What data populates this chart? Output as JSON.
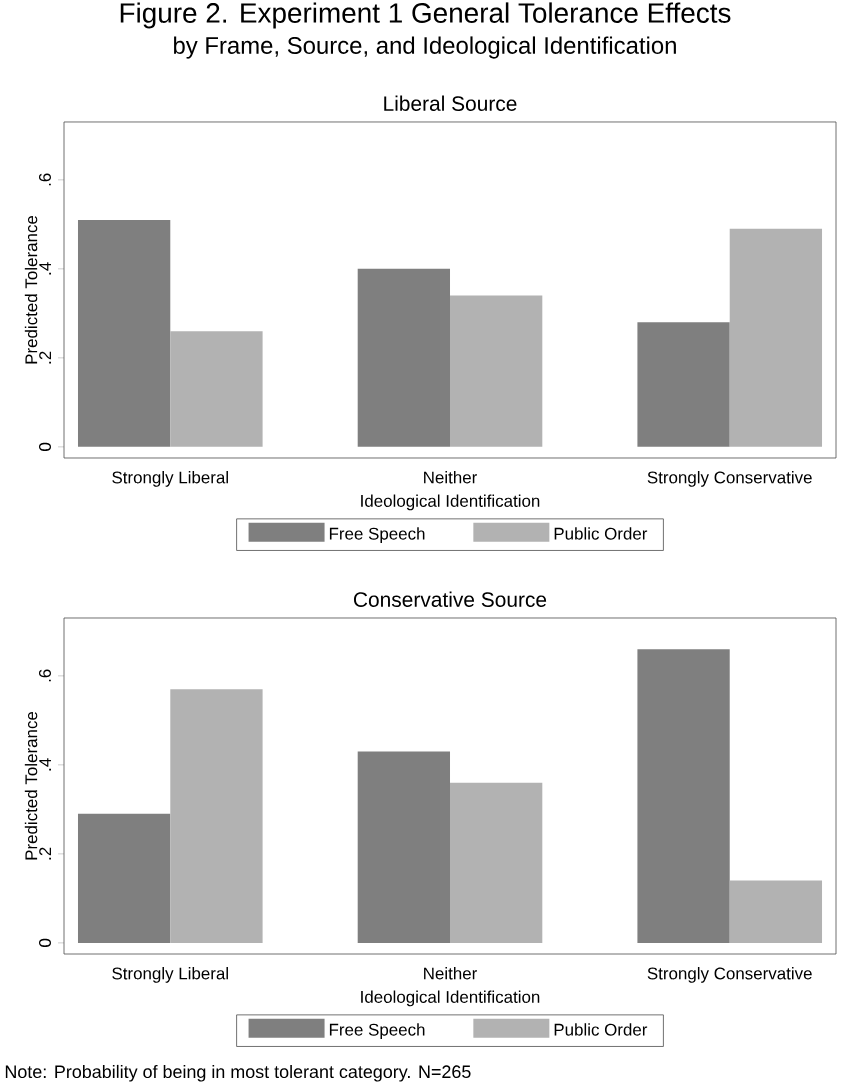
{
  "chart_data": [
    {
      "type": "bar",
      "title": "Liberal Source",
      "xlabel": "Ideological Identification",
      "ylabel": "Predicted Tolerance",
      "annotations": [
        "Figure 2. Experiment 1 General Tolerance Effects",
        "by Frame, Source, and Ideological Identification"
      ],
      "categories": [
        "Strongly Liberal",
        "Neither",
        "Strongly Conservative"
      ],
      "series": [
        {
          "name": "Free Speech",
          "color": "#7f7f7f",
          "values": [
            0.51,
            0.4,
            0.28
          ]
        },
        {
          "name": "Public Order",
          "color": "#b2b2b2",
          "values": [
            0.26,
            0.34,
            0.49
          ]
        }
      ],
      "ylim": [
        -0.025,
        0.73
      ],
      "yticks": [
        0,
        {
          "value": 0.2,
          "label": ".2"
        },
        {
          "value": 0.4,
          "label": ".4"
        },
        {
          "value": 0.6,
          "label": ".6"
        }
      ],
      "grid": false,
      "legend": "bottom"
    },
    {
      "type": "bar",
      "title": "Conservative Source",
      "xlabel": "Ideological Identification",
      "ylabel": "Predicted Tolerance",
      "annotations": [
        "Note: Probability of being in most tolerant category. N=265"
      ],
      "categories": [
        "Strongly Liberal",
        "Neither",
        "Strongly Conservative"
      ],
      "series": [
        {
          "name": "Free Speech",
          "color": "#7f7f7f",
          "values": [
            0.29,
            0.43,
            0.66
          ]
        },
        {
          "name": "Public Order",
          "color": "#b2b2b2",
          "values": [
            0.57,
            0.36,
            0.14
          ]
        }
      ],
      "ylim": [
        -0.025,
        0.73
      ],
      "yticks": [
        0,
        {
          "value": 0.2,
          "label": ".2"
        },
        {
          "value": 0.4,
          "label": ".4"
        },
        {
          "value": 0.6,
          "label": ".6"
        }
      ],
      "grid": false,
      "legend": "bottom"
    }
  ]
}
